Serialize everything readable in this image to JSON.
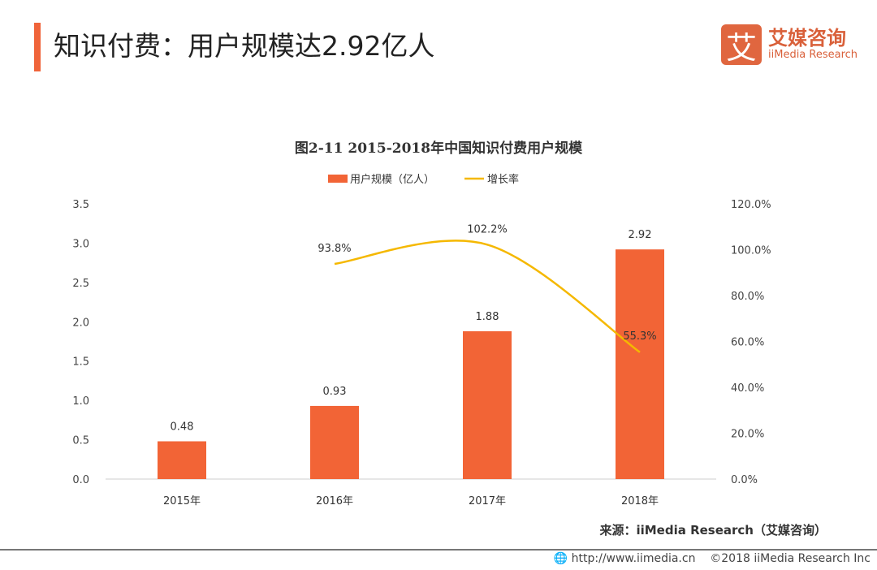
{
  "header": {
    "title": "知识付费：用户规模达2.92亿人",
    "logo_cn": "艾媒咨询",
    "logo_en": "iiMedia Research",
    "logo_mark": "艾"
  },
  "chart_data": {
    "type": "bar+line",
    "title": "图2-11 2015-2018年中国知识付费用户规模",
    "categories": [
      "2015年",
      "2016年",
      "2017年",
      "2018年"
    ],
    "series": [
      {
        "name": "用户规模（亿人）",
        "type": "bar",
        "axis": "left",
        "values": [
          0.48,
          0.93,
          1.88,
          2.92
        ],
        "labels": [
          "0.48",
          "0.93",
          "1.88",
          "2.92"
        ],
        "color": "#f26436"
      },
      {
        "name": "增长率",
        "type": "line",
        "axis": "right",
        "values": [
          null,
          93.8,
          102.2,
          55.3
        ],
        "labels": [
          "",
          "93.8%",
          "102.2%",
          "55.3%"
        ],
        "color": "#f5b800"
      }
    ],
    "y_left": {
      "ylim": [
        0,
        3.5
      ],
      "ticks": [
        "0.0",
        "0.5",
        "1.0",
        "1.5",
        "2.0",
        "2.5",
        "3.0",
        "3.5"
      ]
    },
    "y_right": {
      "ylim": [
        0,
        120
      ],
      "ticks": [
        "0.0%",
        "20.0%",
        "40.0%",
        "60.0%",
        "80.0%",
        "100.0%",
        "120.0%"
      ]
    },
    "legend": "top",
    "grid": false
  },
  "footer": {
    "source": "来源：iiMedia Research（艾媒咨询）",
    "url": "http://www.iimedia.cn",
    "copyright": "©2018  iiMedia Research  Inc"
  }
}
